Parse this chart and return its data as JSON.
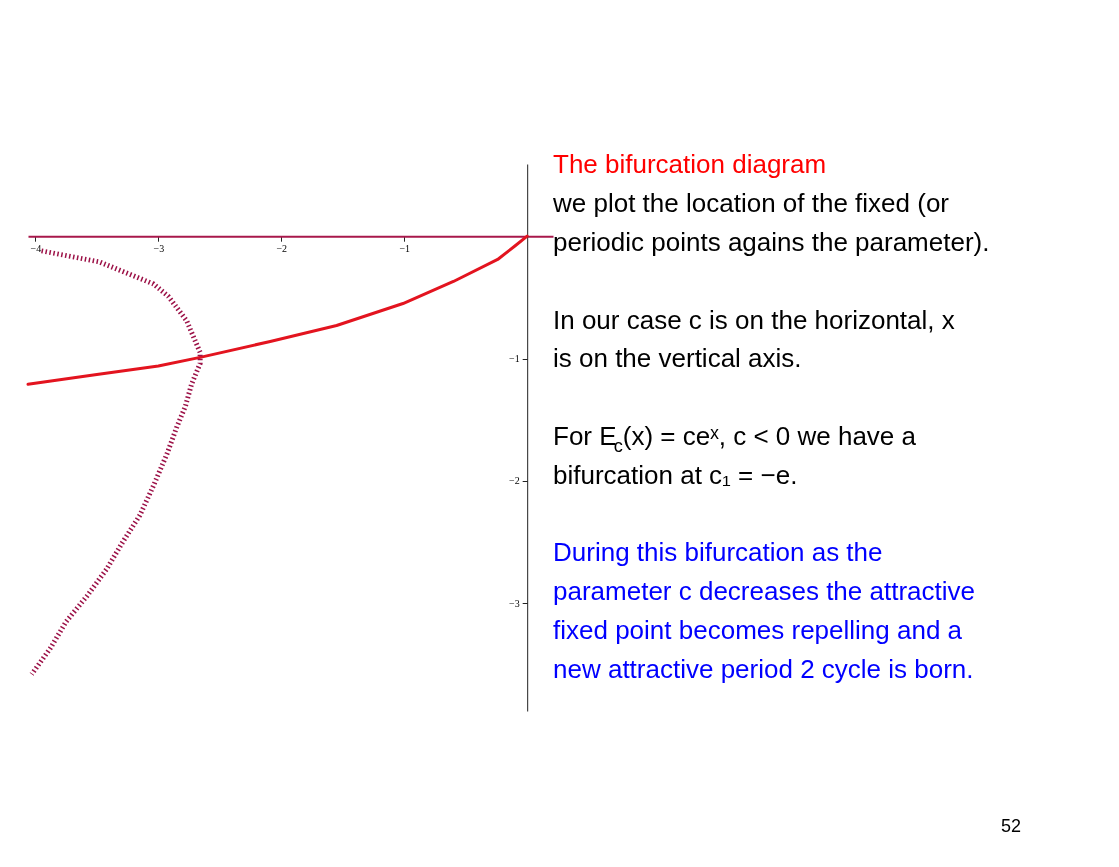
{
  "chart_data": {
    "type": "line",
    "title": "The bifurcation diagram",
    "annotations": [
      "we plot the location of the fixed (or periodic points agains the parameter).",
      "In our case c is on the horizontal, x is on the vertical axis.",
      "For E$_{c}$(x) = ceˣ, c < 0 we have a bifurcation at c₁ = −e.",
      "During this bifurcation as the parameter c decreases the attractive fixed point becomes repelling and a new attractive period 2 cycle is born.",
      "52"
    ],
    "xlim": [
      -4.06,
      0.21
    ],
    "ylim": [
      -3.88,
      0.59
    ],
    "xticks": [
      -4,
      -3,
      -2,
      -1
    ],
    "yticks": [
      -3,
      -2,
      -1
    ],
    "series": [
      {
        "color": "#e3141f",
        "x": [
          -4.06,
          -3.5,
          -3.0,
          -2.66,
          -2.09,
          -1.55,
          -1.01,
          -0.6,
          -0.24,
          -0.1,
          0
        ],
        "values": [
          -1.21,
          -1.13,
          -1.06,
          -0.99,
          -0.86,
          -0.73,
          -0.55,
          -0.37,
          -0.19,
          -0.08,
          0
        ]
      },
      {
        "color": "#9c1147",
        "line_style": "dotted",
        "x": [
          -3.95,
          -3.48,
          -3.04,
          -2.92,
          -2.77,
          -2.66,
          -2.66,
          -2.73,
          -2.78,
          -2.85,
          -2.93,
          -3.04,
          -3.15,
          -3.29,
          -3.42,
          -3.58,
          -3.75,
          -3.88,
          -4.03
        ],
        "values": [
          -0.12,
          -0.21,
          -0.39,
          -0.49,
          -0.69,
          -0.95,
          -1.04,
          -1.21,
          -1.39,
          -1.56,
          -1.78,
          -2.04,
          -2.28,
          -2.5,
          -2.72,
          -2.94,
          -3.15,
          -3.37,
          -3.58
        ]
      }
    ]
  }
}
